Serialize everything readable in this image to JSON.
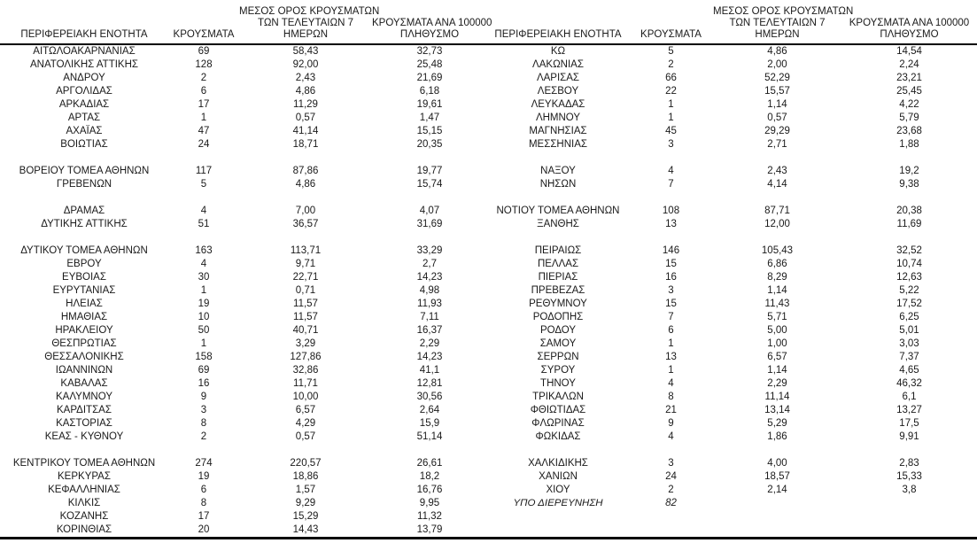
{
  "colors": {
    "background": "#ffffff",
    "text": "#1a1a1a",
    "rule": "#000000"
  },
  "table": {
    "headers": {
      "region": "ΠΕΡΙΦΕΡΕΙΑΚΗ ΕΝΟΤΗΤΑ",
      "cases": "ΚΡΟΥΣΜΑΤΑ",
      "avg7_lines": [
        "ΜΕΣΟΣ ΟΡΟΣ ΚΡΟΥΣΜΑΤΩΝ",
        "ΤΩΝ ΤΕΛΕΥΤΑΙΩΝ 7",
        "ΗΜΕΡΩΝ"
      ],
      "per100k_lines": [
        "ΚΡΟΥΣΜΑΤΑ ΑΝΑ 100000",
        "ΠΛΗΘΥΣΜΟ"
      ]
    },
    "rows": [
      {
        "left": [
          "ΑΙΤΩΛΟΑΚΑΡΝΑΝΙΑΣ",
          "69",
          "58,43",
          "32,73"
        ],
        "right": [
          "ΚΩ",
          "5",
          "4,86",
          "14,54"
        ]
      },
      {
        "left": [
          "ΑΝΑΤΟΛΙΚΗΣ ΑΤΤΙΚΗΣ",
          "128",
          "92,00",
          "25,48"
        ],
        "right": [
          "ΛΑΚΩΝΙΑΣ",
          "2",
          "2,00",
          "2,24"
        ]
      },
      {
        "left": [
          "ΑΝΔΡΟΥ",
          "2",
          "2,43",
          "21,69"
        ],
        "right": [
          "ΛΑΡΙΣΑΣ",
          "66",
          "52,29",
          "23,21"
        ]
      },
      {
        "left": [
          "ΑΡΓΟΛΙΔΑΣ",
          "6",
          "4,86",
          "6,18"
        ],
        "right": [
          "ΛΕΣΒΟΥ",
          "22",
          "15,57",
          "25,45"
        ]
      },
      {
        "left": [
          "ΑΡΚΑΔΙΑΣ",
          "17",
          "11,29",
          "19,61"
        ],
        "right": [
          "ΛΕΥΚΑΔΑΣ",
          "1",
          "1,14",
          "4,22"
        ]
      },
      {
        "left": [
          "ΑΡΤΑΣ",
          "1",
          "0,57",
          "1,47"
        ],
        "right": [
          "ΛΗΜΝΟΥ",
          "1",
          "0,57",
          "5,79"
        ]
      },
      {
        "left": [
          "ΑΧΑΪΑΣ",
          "47",
          "41,14",
          "15,15"
        ],
        "right": [
          "ΜΑΓΝΗΣΙΑΣ",
          "45",
          "29,29",
          "23,68"
        ]
      },
      {
        "left": [
          "ΒΟΙΩΤΙΑΣ",
          "24",
          "18,71",
          "20,35"
        ],
        "right": [
          "ΜΕΣΣΗΝΙΑΣ",
          "3",
          "2,71",
          "1,88"
        ]
      },
      {
        "spacer": true
      },
      {
        "left": [
          "ΒΟΡΕΙΟΥ ΤΟΜΕΑ ΑΘΗΝΩΝ",
          "117",
          "87,86",
          "19,77"
        ],
        "right": [
          "ΝΑΞΟΥ",
          "4",
          "2,43",
          "19,2"
        ]
      },
      {
        "left": [
          "ΓΡΕΒΕΝΩΝ",
          "5",
          "4,86",
          "15,74"
        ],
        "right": [
          "ΝΗΣΩΝ",
          "7",
          "4,14",
          "9,38"
        ]
      },
      {
        "spacer": true
      },
      {
        "left": [
          "ΔΡΑΜΑΣ",
          "4",
          "7,00",
          "4,07"
        ],
        "right": [
          "ΝΟΤΙΟΥ ΤΟΜΕΑ ΑΘΗΝΩΝ",
          "108",
          "87,71",
          "20,38"
        ]
      },
      {
        "left": [
          "ΔΥΤΙΚΗΣ ΑΤΤΙΚΗΣ",
          "51",
          "36,57",
          "31,69"
        ],
        "right": [
          "ΞΑΝΘΗΣ",
          "13",
          "12,00",
          "11,69"
        ]
      },
      {
        "spacer": true
      },
      {
        "left": [
          "ΔΥΤΙΚΟΥ ΤΟΜΕΑ ΑΘΗΝΩΝ",
          "163",
          "113,71",
          "33,29"
        ],
        "right": [
          "ΠΕΙΡΑΙΩΣ",
          "146",
          "105,43",
          "32,52"
        ]
      },
      {
        "left": [
          "ΕΒΡΟΥ",
          "4",
          "9,71",
          "2,7"
        ],
        "right": [
          "ΠΕΛΛΑΣ",
          "15",
          "6,86",
          "10,74"
        ]
      },
      {
        "left": [
          "ΕΥΒΟΙΑΣ",
          "30",
          "22,71",
          "14,23"
        ],
        "right": [
          "ΠΙΕΡΙΑΣ",
          "16",
          "8,29",
          "12,63"
        ]
      },
      {
        "left": [
          "ΕΥΡΥΤΑΝΙΑΣ",
          "1",
          "0,71",
          "4,98"
        ],
        "right": [
          "ΠΡΕΒΕΖΑΣ",
          "3",
          "1,14",
          "5,22"
        ]
      },
      {
        "left": [
          "ΗΛΕΙΑΣ",
          "19",
          "11,57",
          "11,93"
        ],
        "right": [
          "ΡΕΘΥΜΝΟΥ",
          "15",
          "11,43",
          "17,52"
        ]
      },
      {
        "left": [
          "ΗΜΑΘΙΑΣ",
          "10",
          "11,57",
          "7,11"
        ],
        "right": [
          "ΡΟΔΟΠΗΣ",
          "7",
          "5,71",
          "6,25"
        ]
      },
      {
        "left": [
          "ΗΡΑΚΛΕΙΟΥ",
          "50",
          "40,71",
          "16,37"
        ],
        "right": [
          "ΡΟΔΟΥ",
          "6",
          "5,00",
          "5,01"
        ]
      },
      {
        "left": [
          "ΘΕΣΠΡΩΤΙΑΣ",
          "1",
          "3,29",
          "2,29"
        ],
        "right": [
          "ΣΑΜΟΥ",
          "1",
          "1,00",
          "3,03"
        ]
      },
      {
        "left": [
          "ΘΕΣΣΑΛΟΝΙΚΗΣ",
          "158",
          "127,86",
          "14,23"
        ],
        "right": [
          "ΣΕΡΡΩΝ",
          "13",
          "6,57",
          "7,37"
        ]
      },
      {
        "left": [
          "ΙΩΑΝΝΙΝΩΝ",
          "69",
          "32,86",
          "41,1"
        ],
        "right": [
          "ΣΥΡΟΥ",
          "1",
          "1,14",
          "4,65"
        ]
      },
      {
        "left": [
          "ΚΑΒΑΛΑΣ",
          "16",
          "11,71",
          "12,81"
        ],
        "right": [
          "ΤΗΝΟΥ",
          "4",
          "2,29",
          "46,32"
        ]
      },
      {
        "left": [
          "ΚΑΛΥΜΝΟΥ",
          "9",
          "10,00",
          "30,56"
        ],
        "right": [
          "ΤΡΙΚΑΛΩΝ",
          "8",
          "11,14",
          "6,1"
        ]
      },
      {
        "left": [
          "ΚΑΡΔΙΤΣΑΣ",
          "3",
          "6,57",
          "2,64"
        ],
        "right": [
          "ΦΘΙΩΤΙΔΑΣ",
          "21",
          "13,14",
          "13,27"
        ]
      },
      {
        "left": [
          "ΚΑΣΤΟΡΙΑΣ",
          "8",
          "4,29",
          "15,9"
        ],
        "right": [
          "ΦΛΩΡΙΝΑΣ",
          "9",
          "5,29",
          "17,5"
        ]
      },
      {
        "left": [
          "ΚΕΑΣ - ΚΥΘΝΟΥ",
          "2",
          "0,57",
          "51,14"
        ],
        "right": [
          "ΦΩΚΙΔΑΣ",
          "4",
          "1,86",
          "9,91"
        ]
      },
      {
        "spacer": true
      },
      {
        "left": [
          "ΚΕΝΤΡΙΚΟΥ ΤΟΜΕΑ ΑΘΗΝΩΝ",
          "274",
          "220,57",
          "26,61"
        ],
        "right": [
          "ΧΑΛΚΙΔΙΚΗΣ",
          "3",
          "4,00",
          "2,83"
        ]
      },
      {
        "left": [
          "ΚΕΡΚΥΡΑΣ",
          "19",
          "18,86",
          "18,2"
        ],
        "right": [
          "ΧΑΝΙΩΝ",
          "24",
          "18,57",
          "15,33"
        ]
      },
      {
        "left": [
          "ΚΕΦΑΛΛΗΝΙΑΣ",
          "6",
          "1,57",
          "16,76"
        ],
        "right": [
          "ΧΙΟΥ",
          "2",
          "2,14",
          "3,8"
        ]
      },
      {
        "left": [
          "ΚΙΛΚΙΣ",
          "8",
          "9,29",
          "9,95"
        ],
        "right": [
          "ΥΠΟ ΔΙΕΡΕΥΝΗΣΗ",
          "82",
          "",
          ""
        ],
        "right_italic": true
      },
      {
        "left": [
          "ΚΟΖΑΝΗΣ",
          "17",
          "15,29",
          "11,32"
        ],
        "right": [
          "",
          "",
          "",
          ""
        ]
      },
      {
        "left": [
          "ΚΟΡΙΝΘΙΑΣ",
          "20",
          "14,43",
          "13,79"
        ],
        "right": [
          "",
          "",
          "",
          ""
        ]
      }
    ]
  }
}
